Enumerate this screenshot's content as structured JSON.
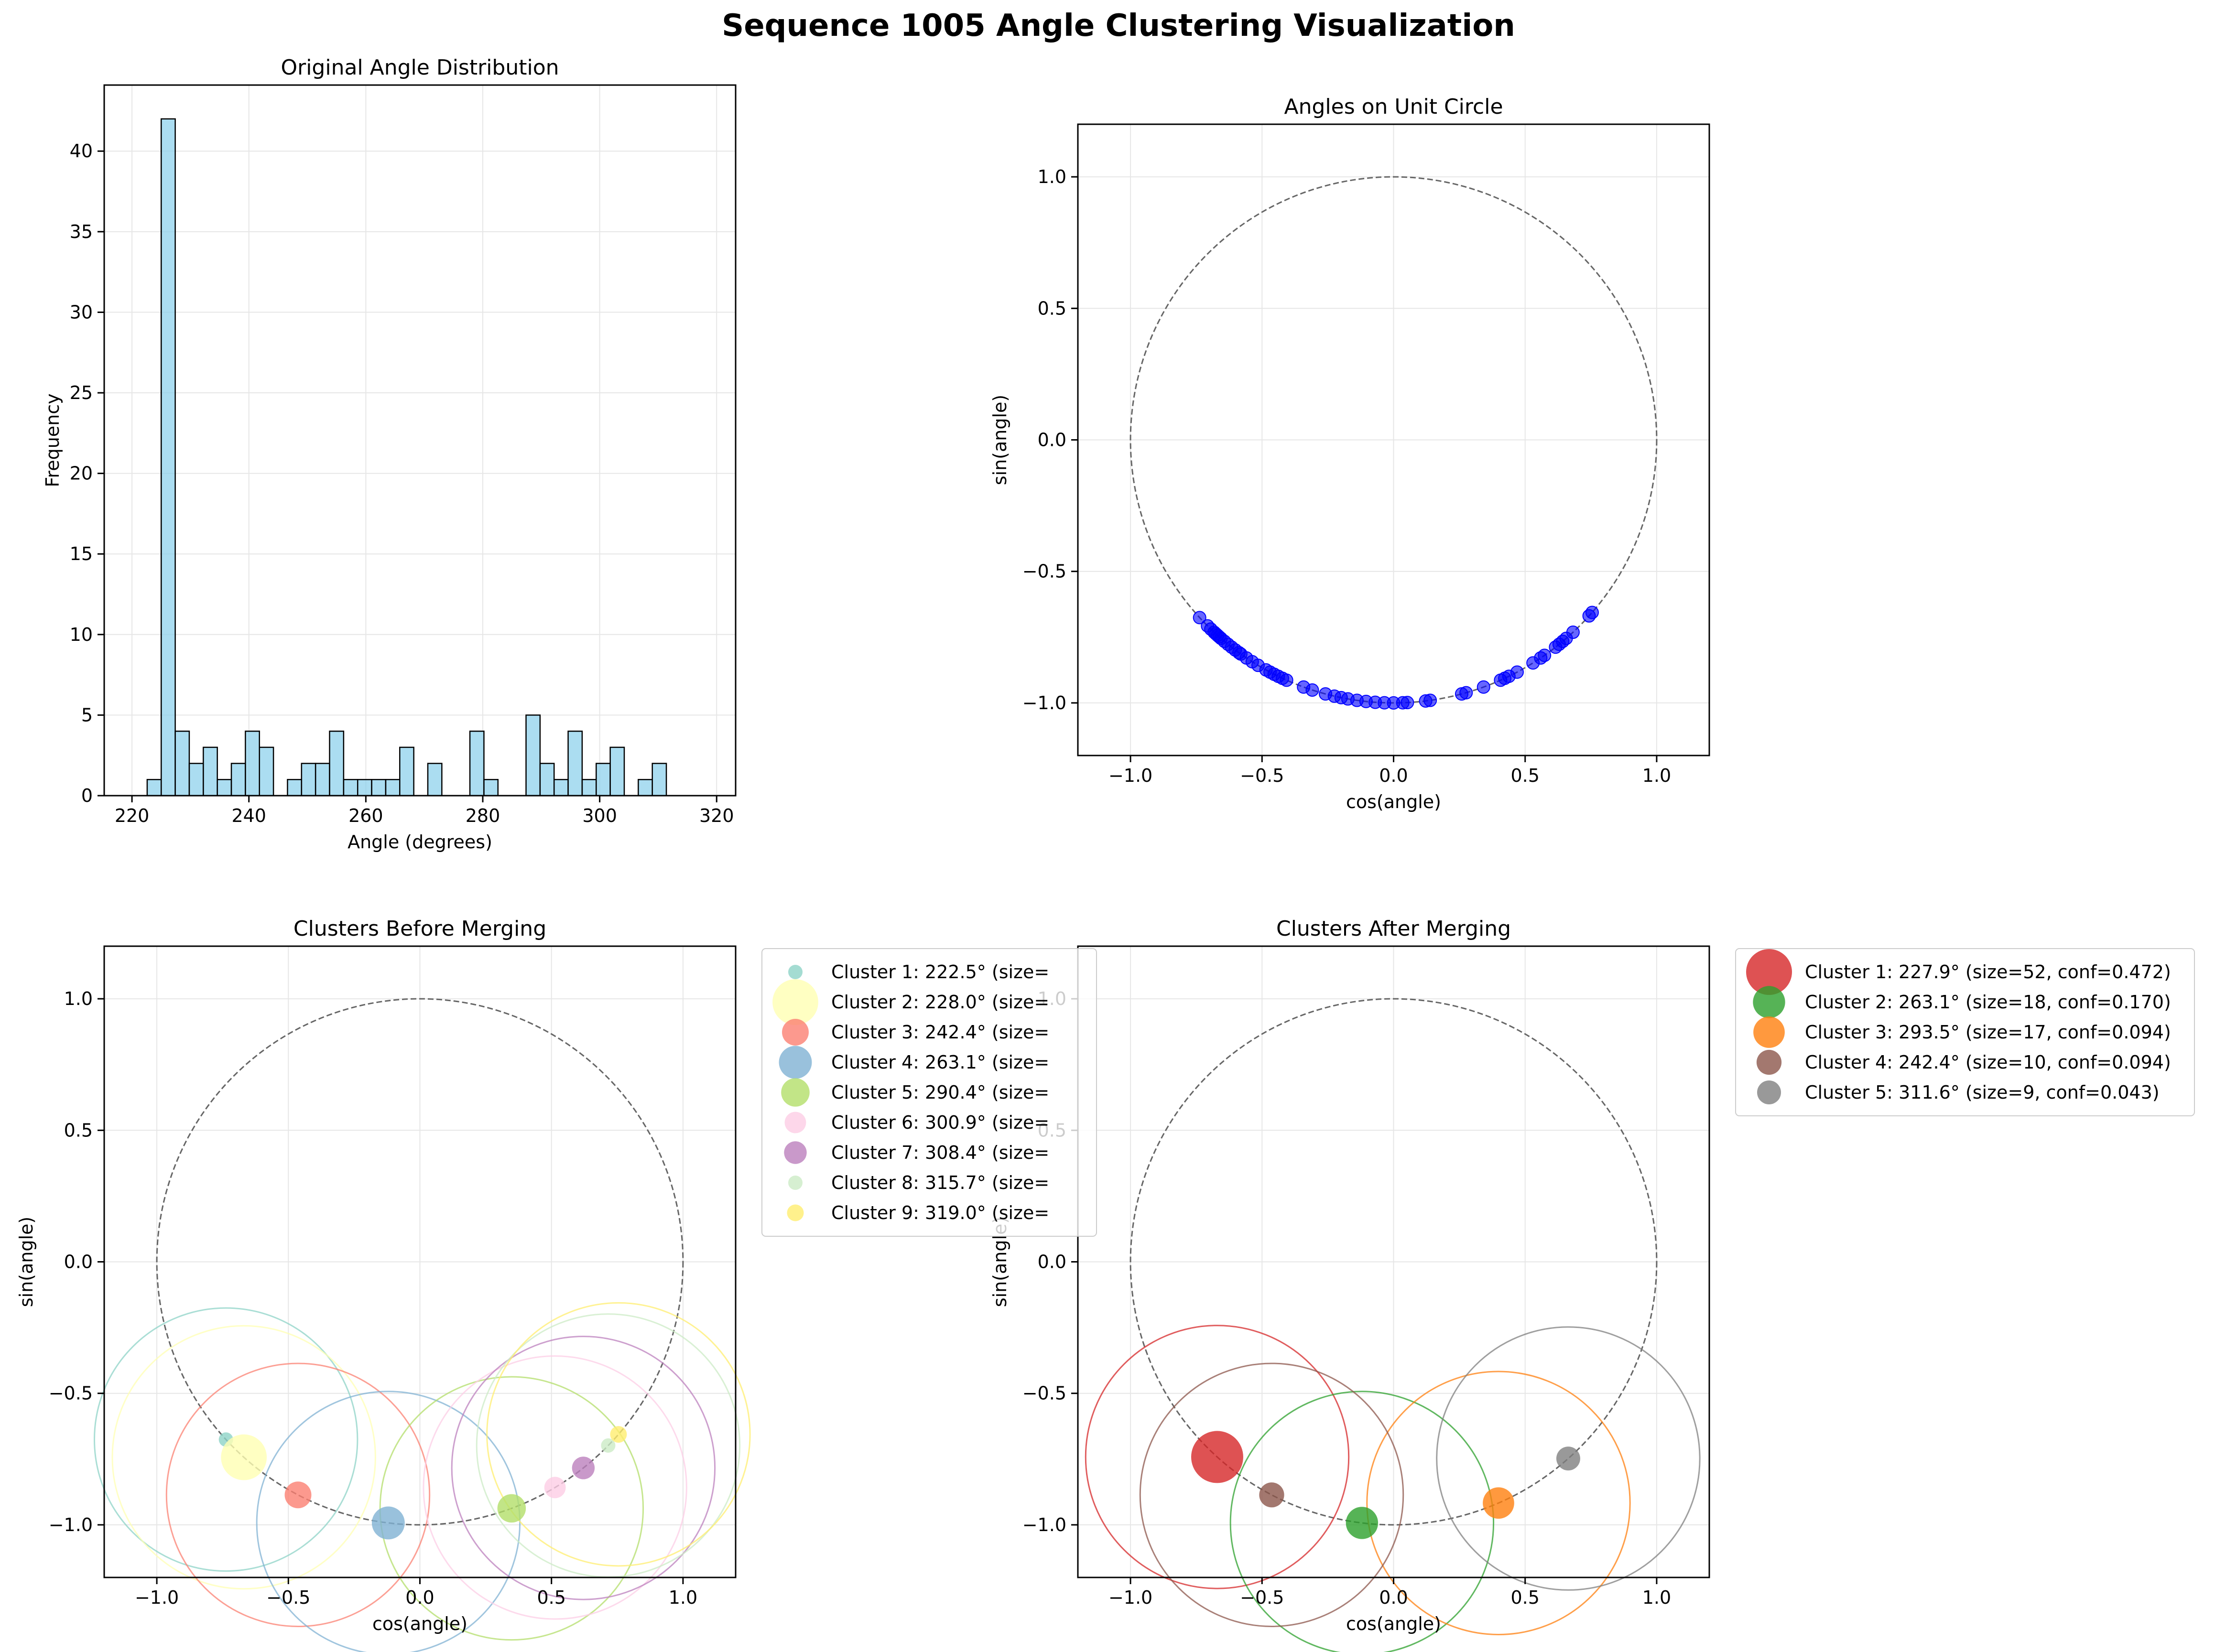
{
  "figure": {
    "suptitle": "Sequence 1005 Angle Clustering Visualization"
  },
  "chart_data": [
    {
      "type": "bar",
      "title": "Original Angle Distribution",
      "xlabel": "Angle (degrees)",
      "ylabel": "Frequency",
      "xlim": [
        215.25,
        323.25
      ],
      "ylim": [
        0,
        44.1
      ],
      "xticks": [
        220,
        240,
        260,
        280,
        300,
        320
      ],
      "yticks": [
        0,
        5,
        10,
        15,
        20,
        25,
        30,
        35,
        40
      ],
      "grid": true,
      "bar_color": "#87ceeb",
      "bin_width": 2.4,
      "bin_start": 222.6,
      "values": [
        1,
        42,
        4,
        2,
        3,
        1,
        2,
        4,
        3,
        0,
        1,
        2,
        2,
        4,
        1,
        1,
        1,
        1,
        3,
        0,
        2,
        0,
        0,
        4,
        1,
        0,
        0,
        5,
        2,
        1,
        4,
        1,
        2,
        3,
        0,
        1,
        2
      ]
    },
    {
      "type": "scatter",
      "title": "Angles on Unit Circle",
      "xlabel": "cos(angle)",
      "ylabel": "sin(angle)",
      "xlim": [
        -1.2,
        1.2
      ],
      "ylim": [
        -1.2,
        1.2
      ],
      "xticks": [
        -1.0,
        -0.5,
        0.0,
        0.5,
        1.0
      ],
      "yticks": [
        -1.0,
        -0.5,
        0.0,
        0.5,
        1.0
      ],
      "grid": true,
      "unit_circle": true,
      "point_color": "#0000ff",
      "angles_deg": [
        222.5,
        225.0,
        226.0,
        227.0,
        227.5,
        228.0,
        228.5,
        229.0,
        230.0,
        231.0,
        232.0,
        233.0,
        234.0,
        234.5,
        236.0,
        237.5,
        239.0,
        241.0,
        242.0,
        243.0,
        244.0,
        245.0,
        246.0,
        250.0,
        252.0,
        255.0,
        257.0,
        258.5,
        260.0,
        262.0,
        264.0,
        266.0,
        268.0,
        270.0,
        272.0,
        273.0,
        277.0,
        278.0,
        285.0,
        286.0,
        290.0,
        294.0,
        295.0,
        296.0,
        298.0,
        302.0,
        304.0,
        305.0,
        308.0,
        309.0,
        310.0,
        311.0,
        313.0,
        318.0,
        319.0
      ]
    },
    {
      "type": "scatter",
      "title": "Clusters Before Merging",
      "xlabel": "cos(angle)",
      "ylabel": "sin(angle)",
      "xlim": [
        -1.2,
        1.2
      ],
      "ylim": [
        -1.2,
        1.2
      ],
      "xticks": [
        -1.0,
        -0.5,
        0.0,
        0.5,
        1.0
      ],
      "yticks": [
        -1.0,
        -0.5,
        0.0,
        0.5,
        1.0
      ],
      "grid": true,
      "unit_circle": true,
      "legend_position": "outside-right",
      "clusters": [
        {
          "label": "Cluster 1: 222.5° (size=",
          "angle": 222.5,
          "size": 1,
          "color": "#8dd3c7"
        },
        {
          "label": "Cluster 2: 228.0° (size=",
          "angle": 228.0,
          "size": 42,
          "color": "#ffffb3"
        },
        {
          "label": "Cluster 3: 242.4° (size=",
          "angle": 242.4,
          "size": 10,
          "color": "#fb8072"
        },
        {
          "label": "Cluster 4: 263.1° (size=",
          "angle": 263.1,
          "size": 18,
          "color": "#80b1d3"
        },
        {
          "label": "Cluster 5: 290.4° (size=",
          "angle": 290.4,
          "size": 12,
          "color": "#b3de69"
        },
        {
          "label": "Cluster 6: 300.9° (size=",
          "angle": 300.9,
          "size": 5,
          "color": "#fccde5"
        },
        {
          "label": "Cluster 7: 308.4° (size=",
          "angle": 308.4,
          "size": 6,
          "color": "#bc80bd"
        },
        {
          "label": "Cluster 8: 315.7° (size=",
          "angle": 315.7,
          "size": 1,
          "color": "#ccebc5"
        },
        {
          "label": "Cluster 9: 319.0° (size=",
          "angle": 319.0,
          "size": 2,
          "color": "#ffed6f"
        }
      ]
    },
    {
      "type": "scatter",
      "title": "Clusters After Merging",
      "xlabel": "cos(angle)",
      "ylabel": "sin(angle)",
      "xlim": [
        -1.2,
        1.2
      ],
      "ylim": [
        -1.2,
        1.2
      ],
      "xticks": [
        -1.0,
        -0.5,
        0.0,
        0.5,
        1.0
      ],
      "yticks": [
        -1.0,
        -0.5,
        0.0,
        0.5,
        1.0
      ],
      "grid": true,
      "unit_circle": true,
      "legend_position": "outside-right",
      "clusters": [
        {
          "label": "Cluster 1: 227.9° (size=52, conf=0.472)",
          "angle": 227.9,
          "size": 52,
          "conf": 0.472,
          "color": "#d62728"
        },
        {
          "label": "Cluster 2: 263.1° (size=18, conf=0.170)",
          "angle": 263.1,
          "size": 18,
          "conf": 0.17,
          "color": "#2ca02c"
        },
        {
          "label": "Cluster 3: 293.5° (size=17, conf=0.094)",
          "angle": 293.5,
          "size": 17,
          "conf": 0.094,
          "color": "#ff7f0e"
        },
        {
          "label": "Cluster 4: 242.4° (size=10, conf=0.094)",
          "angle": 242.4,
          "size": 10,
          "conf": 0.094,
          "color": "#8c564b"
        },
        {
          "label": "Cluster 5: 311.6° (size=9, conf=0.043)",
          "angle": 311.6,
          "size": 9,
          "conf": 0.043,
          "color": "#7f7f7f"
        }
      ]
    }
  ]
}
